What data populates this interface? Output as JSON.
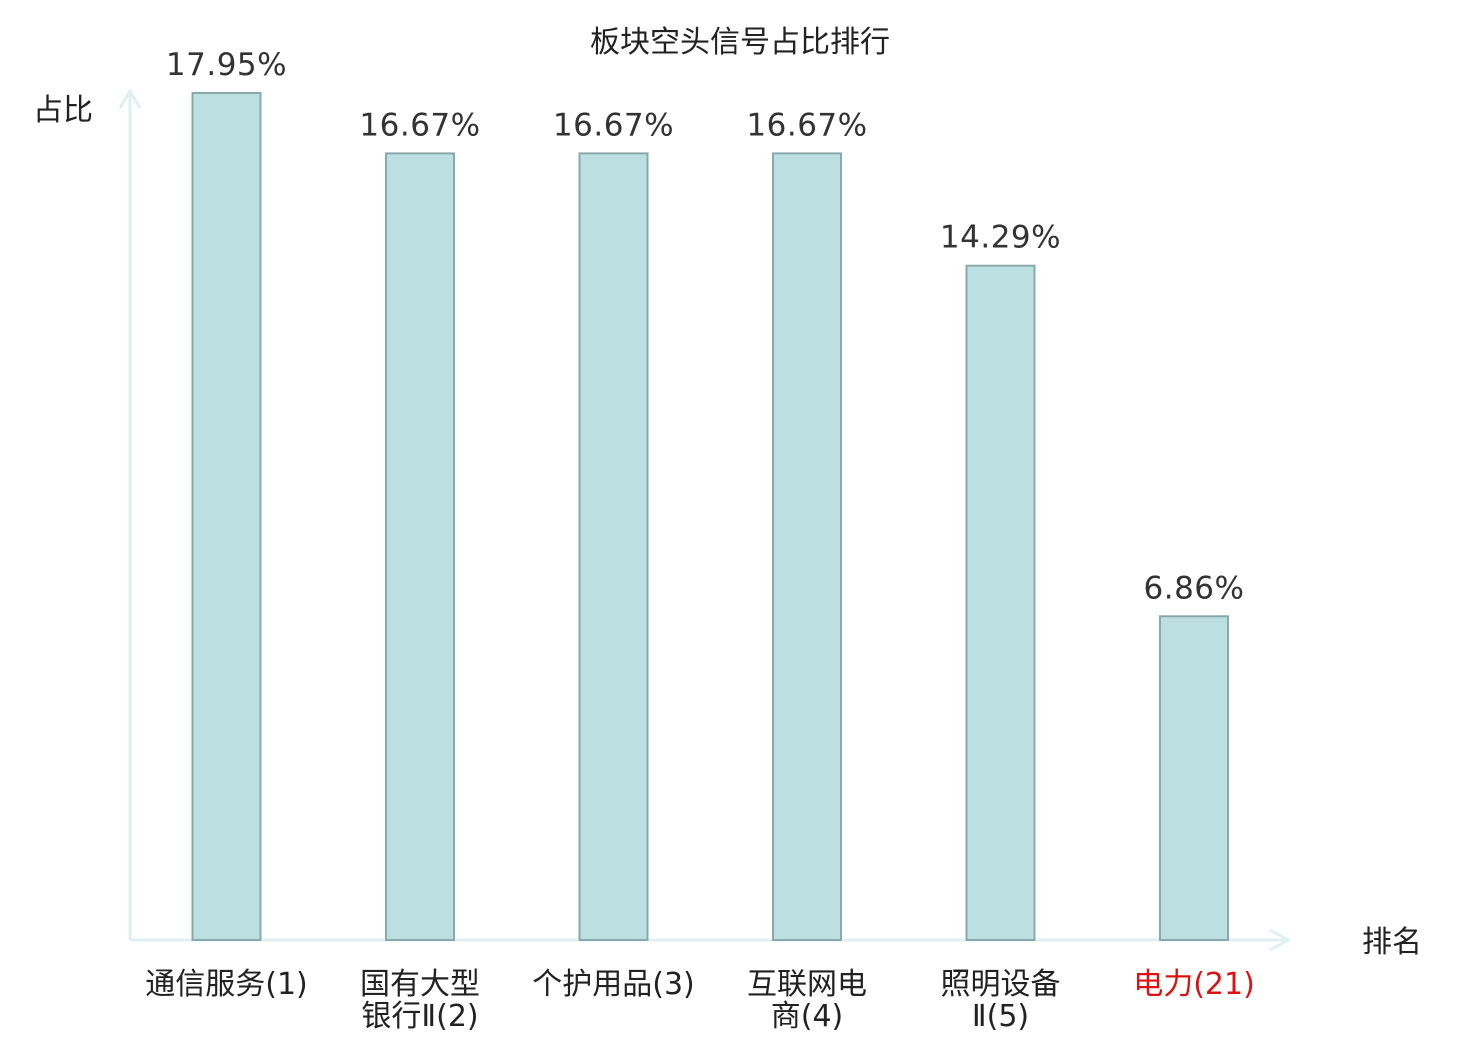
{
  "chart_data": {
    "type": "bar",
    "title": "板块空头信号占比排行",
    "ylabel": "占比",
    "xlabel": "排名",
    "categories": [
      {
        "lines": [
          "通信服务(1)"
        ],
        "highlight": false
      },
      {
        "lines": [
          "国有大型",
          "银行Ⅱ(2)"
        ],
        "highlight": false
      },
      {
        "lines": [
          "个护用品(3)"
        ],
        "highlight": false
      },
      {
        "lines": [
          "互联网电",
          "商(4)"
        ],
        "highlight": false
      },
      {
        "lines": [
          "照明设备",
          "Ⅱ(5)"
        ],
        "highlight": false
      },
      {
        "lines": [
          "电力(21)"
        ],
        "highlight": true
      }
    ],
    "values": [
      17.95,
      16.67,
      16.67,
      16.67,
      14.29,
      6.86
    ],
    "value_labels": [
      "17.95%",
      "16.67%",
      "16.67%",
      "16.67%",
      "14.29%",
      "6.86%"
    ],
    "ylim": [
      0,
      17.95
    ],
    "grid": false,
    "colors": {
      "bar_fill": "#bce0e2",
      "bar_stroke": "#8aa9aa",
      "axis": "#dff1ee",
      "highlight_label": "#dd1111"
    }
  }
}
